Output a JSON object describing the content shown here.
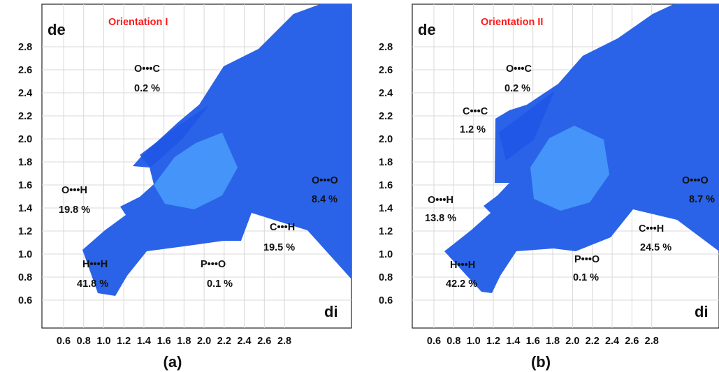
{
  "colors": {
    "title": "#ff1a1a",
    "fingerprint": "#2a63e8",
    "fingerprint_core": "#4ea4ff",
    "axes": "#111111",
    "grid": "#d8d8d8"
  },
  "chart_data": [
    {
      "type": "scatter",
      "panel": "(a)",
      "title": "Orientation I",
      "xlabel": "di",
      "ylabel": "de",
      "xlim": [
        0.4,
        3.0
      ],
      "ylim": [
        0.4,
        3.0
      ],
      "x_ticks": [
        "0.6",
        "0.8",
        "1.0",
        "1.2",
        "1.4",
        "1.6",
        "1.8",
        "2.0",
        "2.2",
        "2.4",
        "2.6",
        "2.8"
      ],
      "y_ticks": [
        "0.6",
        "0.8",
        "1.0",
        "1.2",
        "1.4",
        "1.6",
        "1.8",
        "2.0",
        "2.2",
        "2.4",
        "2.6",
        "2.8"
      ],
      "grid": true,
      "contacts": [
        {
          "label": "O•••C",
          "value": "0.2 %",
          "percent": 0.2
        },
        {
          "label": "O•••H",
          "value": "19.8 %",
          "percent": 19.8
        },
        {
          "label": "O•••O",
          "value": "8.4 %",
          "percent": 8.4
        },
        {
          "label": "C•••H",
          "value": "19.5 %",
          "percent": 19.5
        },
        {
          "label": "H•••H",
          "value": "41.8 %",
          "percent": 41.8
        },
        {
          "label": "P•••O",
          "value": "0.1 %",
          "percent": 0.1
        }
      ]
    },
    {
      "type": "scatter",
      "panel": "(b)",
      "title": "Orientation II",
      "xlabel": "di",
      "ylabel": "de",
      "xlim": [
        0.4,
        3.0
      ],
      "ylim": [
        0.4,
        3.0
      ],
      "x_ticks": [
        "0.6",
        "0.8",
        "1.0",
        "1.2",
        "1.4",
        "1.6",
        "1.8",
        "2.0",
        "2.2",
        "2.4",
        "2.6",
        "2.8"
      ],
      "y_ticks": [
        "0.6",
        "0.8",
        "1.0",
        "1.2",
        "1.4",
        "1.6",
        "1.8",
        "2.0",
        "2.2",
        "2.4",
        "2.6",
        "2.8"
      ],
      "grid": true,
      "contacts": [
        {
          "label": "O•••C",
          "value": "0.2 %",
          "percent": 0.2
        },
        {
          "label": "C•••C",
          "value": "1.2 %",
          "percent": 1.2
        },
        {
          "label": "O•••H",
          "value": "13.8 %",
          "percent": 13.8
        },
        {
          "label": "O•••O",
          "value": "8.7 %",
          "percent": 8.7
        },
        {
          "label": "C•••H",
          "value": "24.5 %",
          "percent": 24.5
        },
        {
          "label": "H•••H",
          "value": "42.2 %",
          "percent": 42.2
        },
        {
          "label": "P•••O",
          "value": "0.1 %",
          "percent": 0.1
        }
      ]
    }
  ]
}
